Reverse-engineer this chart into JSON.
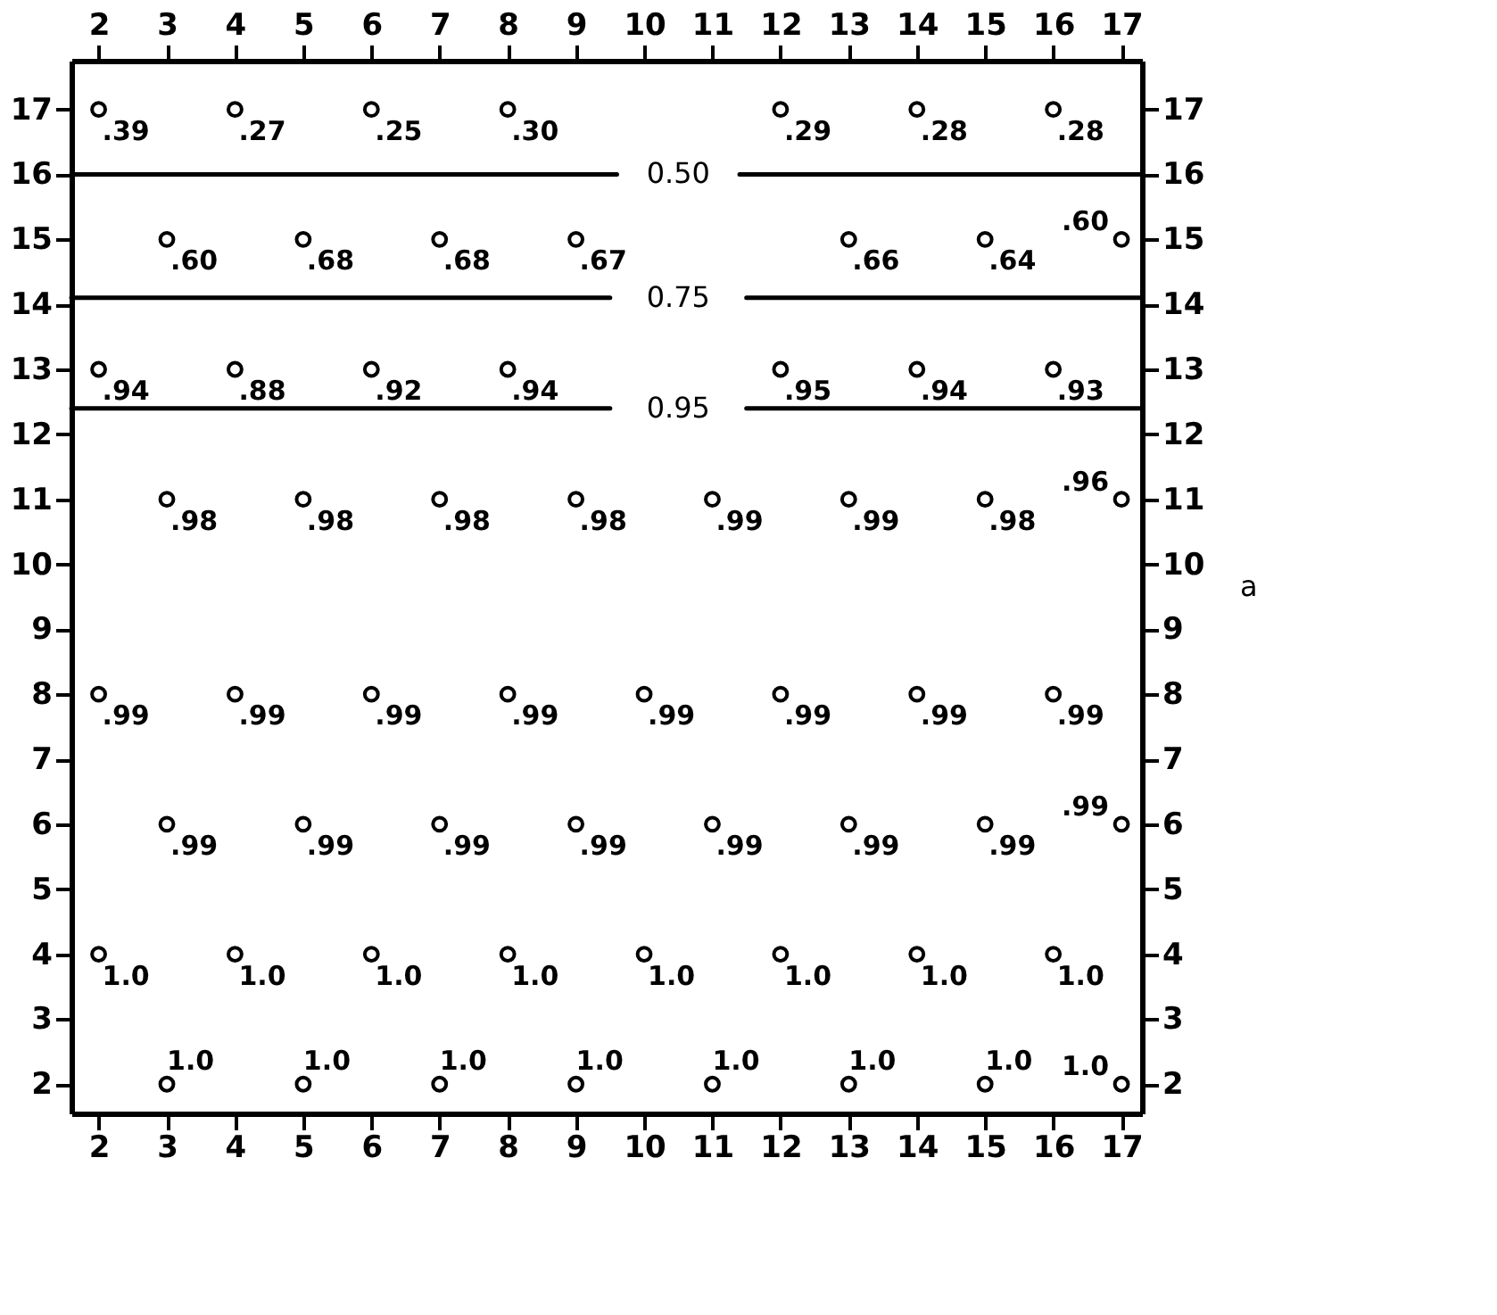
{
  "chart_data": {
    "type": "scatter",
    "series": [
      {
        "color": "#000000",
        "marker": "circle",
        "x": [
          2,
          4,
          6,
          8,
          12,
          14,
          16,
          3,
          5,
          7,
          9,
          13,
          15,
          17,
          2,
          4,
          6,
          8,
          12,
          14,
          16,
          3,
          5,
          7,
          9,
          11,
          13,
          15,
          17,
          2,
          4,
          6,
          8,
          10,
          12,
          14,
          16,
          3,
          5,
          7,
          9,
          11,
          13,
          15,
          17,
          2,
          4,
          6,
          8,
          10,
          12,
          14,
          16,
          3,
          5,
          7,
          9,
          11,
          13,
          15,
          17
        ],
        "values": [
          17,
          17,
          17,
          17,
          17,
          17,
          17,
          15,
          15,
          15,
          15,
          15,
          15,
          15,
          13,
          13,
          13,
          13,
          13,
          13,
          13,
          11,
          11,
          11,
          11,
          11,
          11,
          11,
          11,
          8,
          8,
          8,
          8,
          8,
          8,
          8,
          8,
          6,
          6,
          6,
          6,
          6,
          6,
          6,
          6,
          4,
          4,
          4,
          4,
          4,
          4,
          4,
          4,
          2,
          2,
          2,
          2,
          2,
          2,
          2,
          2
        ]
      },
      {
        "type": "line",
        "name": "0.50",
        "color": "#000000",
        "line_style": "solid",
        "x": [
          1.6,
          9.6,
          10.5,
          11.4,
          17.3
        ],
        "values": [
          16,
          16,
          null,
          16,
          16
        ]
      },
      {
        "type": "line",
        "name": "0.75",
        "color": "#000000",
        "line_style": "solid",
        "x": [
          1.6,
          9.5,
          10.5,
          11.5,
          17.3
        ],
        "values": [
          14.1,
          14.1,
          null,
          14.1,
          14.1
        ]
      },
      {
        "type": "line",
        "name": "0.95",
        "color": "#000000",
        "line_style": "solid",
        "x": [
          1.6,
          9.5,
          10.5,
          11.5,
          17.3
        ],
        "values": [
          12.4,
          12.4,
          null,
          12.4,
          12.4
        ]
      }
    ],
    "annotations": [
      {
        "text": ".39",
        "x": 2,
        "y": 17
      },
      {
        "text": ".27",
        "x": 4,
        "y": 17
      },
      {
        "text": ".25",
        "x": 6,
        "y": 17
      },
      {
        "text": ".30",
        "x": 8,
        "y": 17
      },
      {
        "text": ".29",
        "x": 12,
        "y": 17
      },
      {
        "text": ".28",
        "x": 14,
        "y": 17
      },
      {
        "text": ".28",
        "x": 16,
        "y": 17
      },
      {
        "text": ".60",
        "x": 3,
        "y": 15
      },
      {
        "text": ".68",
        "x": 5,
        "y": 15
      },
      {
        "text": ".68",
        "x": 7,
        "y": 15
      },
      {
        "text": ".67",
        "x": 9,
        "y": 15
      },
      {
        "text": ".66",
        "x": 13,
        "y": 15
      },
      {
        "text": ".64",
        "x": 15,
        "y": 15
      },
      {
        "text": ".60",
        "x": 17,
        "y": 15
      },
      {
        "text": ".94",
        "x": 2,
        "y": 13
      },
      {
        "text": ".88",
        "x": 4,
        "y": 13
      },
      {
        "text": ".92",
        "x": 6,
        "y": 13
      },
      {
        "text": ".94",
        "x": 8,
        "y": 13
      },
      {
        "text": ".95",
        "x": 12,
        "y": 13
      },
      {
        "text": ".94",
        "x": 14,
        "y": 13
      },
      {
        "text": ".93",
        "x": 16,
        "y": 13
      },
      {
        "text": ".98",
        "x": 3,
        "y": 11
      },
      {
        "text": ".98",
        "x": 5,
        "y": 11
      },
      {
        "text": ".98",
        "x": 7,
        "y": 11
      },
      {
        "text": ".98",
        "x": 9,
        "y": 11
      },
      {
        "text": ".99",
        "x": 11,
        "y": 11
      },
      {
        "text": ".99",
        "x": 13,
        "y": 11
      },
      {
        "text": ".98",
        "x": 15,
        "y": 11
      },
      {
        "text": ".96",
        "x": 17,
        "y": 11
      },
      {
        "text": ".99",
        "x": 2,
        "y": 8
      },
      {
        "text": ".99",
        "x": 4,
        "y": 8
      },
      {
        "text": ".99",
        "x": 6,
        "y": 8
      },
      {
        "text": ".99",
        "x": 8,
        "y": 8
      },
      {
        "text": ".99",
        "x": 10,
        "y": 8
      },
      {
        "text": ".99",
        "x": 12,
        "y": 8
      },
      {
        "text": ".99",
        "x": 14,
        "y": 8
      },
      {
        "text": ".99",
        "x": 16,
        "y": 8
      },
      {
        "text": ".99",
        "x": 3,
        "y": 6
      },
      {
        "text": ".99",
        "x": 5,
        "y": 6
      },
      {
        "text": ".99",
        "x": 7,
        "y": 6
      },
      {
        "text": ".99",
        "x": 9,
        "y": 6
      },
      {
        "text": ".99",
        "x": 11,
        "y": 6
      },
      {
        "text": ".99",
        "x": 13,
        "y": 6
      },
      {
        "text": ".99",
        "x": 15,
        "y": 6
      },
      {
        "text": ".99",
        "x": 17,
        "y": 6
      },
      {
        "text": "1.0",
        "x": 2,
        "y": 4
      },
      {
        "text": "1.0",
        "x": 4,
        "y": 4
      },
      {
        "text": "1.0",
        "x": 6,
        "y": 4
      },
      {
        "text": "1.0",
        "x": 8,
        "y": 4
      },
      {
        "text": "1.0",
        "x": 10,
        "y": 4
      },
      {
        "text": "1.0",
        "x": 12,
        "y": 4
      },
      {
        "text": "1.0",
        "x": 14,
        "y": 4
      },
      {
        "text": "1.0",
        "x": 16,
        "y": 4
      },
      {
        "text": "1.0",
        "x": 3,
        "y": 2
      },
      {
        "text": "1.0",
        "x": 5,
        "y": 2
      },
      {
        "text": "1.0",
        "x": 7,
        "y": 2
      },
      {
        "text": "1.0",
        "x": 9,
        "y": 2
      },
      {
        "text": "1.0",
        "x": 11,
        "y": 2
      },
      {
        "text": "1.0",
        "x": 13,
        "y": 2
      },
      {
        "text": "1.0",
        "x": 15,
        "y": 2
      },
      {
        "text": "1.0",
        "x": 17,
        "y": 2
      },
      "a"
    ],
    "xlim": [
      1.6,
      17.3
    ],
    "ylim": [
      1.55,
      17.75
    ],
    "xticks": [
      2,
      3,
      4,
      5,
      6,
      7,
      8,
      9,
      10,
      11,
      12,
      13,
      14,
      15,
      16,
      17
    ],
    "yticks": [
      2,
      3,
      4,
      5,
      6,
      7,
      8,
      9,
      10,
      11,
      12,
      13,
      14,
      15,
      16,
      17
    ],
    "x2lim": [
      1.6,
      17.3
    ],
    "x2ticks": [
      2,
      3,
      4,
      5,
      6,
      7,
      8,
      9,
      10,
      11,
      12,
      13,
      14,
      15,
      16,
      17
    ],
    "y2lim": [
      1.55,
      17.75
    ],
    "y2ticks": [
      2,
      3,
      4,
      5,
      6,
      7,
      8,
      9,
      10,
      11,
      12,
      13,
      14,
      15,
      16,
      17
    ],
    "grid": false
  }
}
